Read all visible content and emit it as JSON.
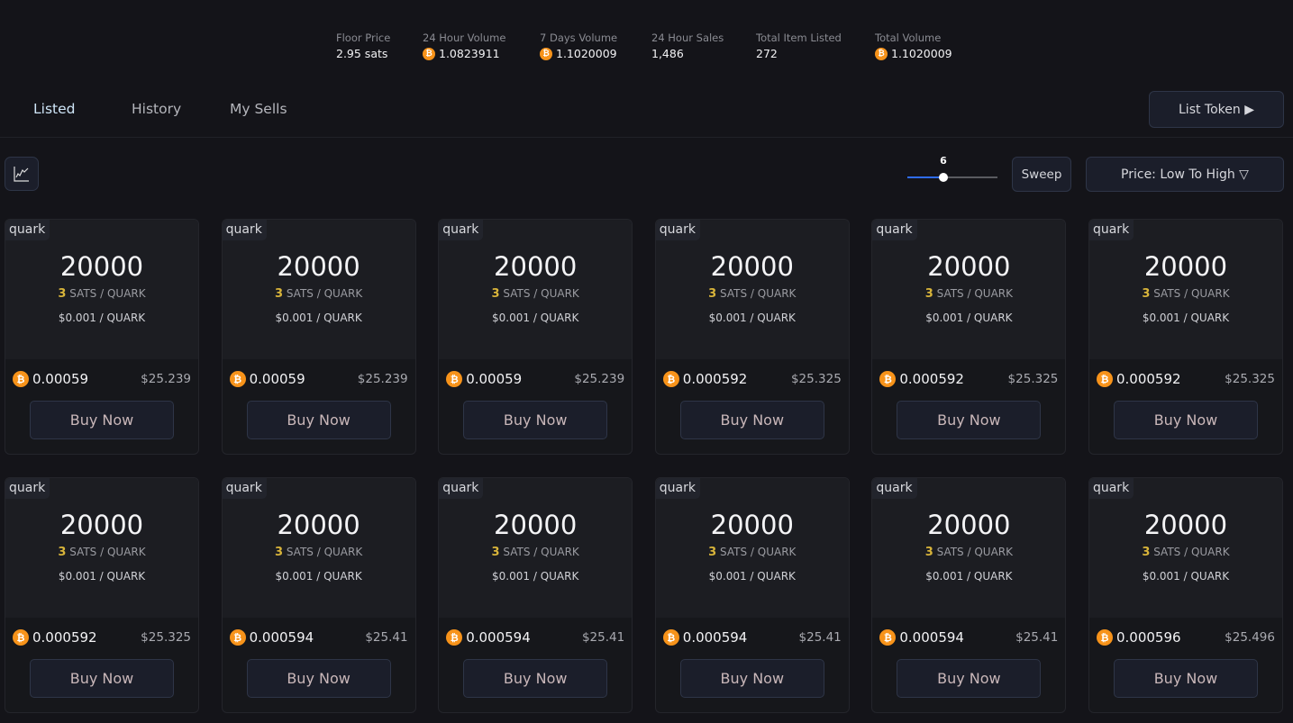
{
  "stats": [
    {
      "label": "Floor Price",
      "value": "2.95 sats",
      "btc": false
    },
    {
      "label": "24 Hour Volume",
      "value": "1.0823911",
      "btc": true
    },
    {
      "label": "7 Days Volume",
      "value": "1.1020009",
      "btc": true
    },
    {
      "label": "24 Hour Sales",
      "value": "1,486",
      "btc": false
    },
    {
      "label": "Total Item Listed",
      "value": "272",
      "btc": false
    },
    {
      "label": "Total Volume",
      "value": "1.1020009",
      "btc": true
    }
  ],
  "tabs": [
    {
      "label": "Listed",
      "active": true
    },
    {
      "label": "History",
      "active": false
    },
    {
      "label": "My Sells",
      "active": false
    }
  ],
  "toolbar": {
    "list_token": "List Token ▶",
    "sweep": "Sweep",
    "sort": "Price: Low To High ▽",
    "sweep_count": "6",
    "sweep_fraction": 0.4,
    "chart_icon": "line-chart-icon"
  },
  "colors": {
    "accent": "#2f6cf0",
    "bitcoin": "#f7931a",
    "sats_highlight": "#d8b43a"
  },
  "cards": [
    {
      "ticker": "quark",
      "amount": "20000",
      "sats": "3",
      "sats_unit": "SATS / QUARK",
      "usd_unit": "$0.001 / QUARK",
      "btc_price": "0.00059",
      "usd_price": "$25.239",
      "buy": "Buy Now"
    },
    {
      "ticker": "quark",
      "amount": "20000",
      "sats": "3",
      "sats_unit": "SATS / QUARK",
      "usd_unit": "$0.001 / QUARK",
      "btc_price": "0.00059",
      "usd_price": "$25.239",
      "buy": "Buy Now"
    },
    {
      "ticker": "quark",
      "amount": "20000",
      "sats": "3",
      "sats_unit": "SATS / QUARK",
      "usd_unit": "$0.001 / QUARK",
      "btc_price": "0.00059",
      "usd_price": "$25.239",
      "buy": "Buy Now"
    },
    {
      "ticker": "quark",
      "amount": "20000",
      "sats": "3",
      "sats_unit": "SATS / QUARK",
      "usd_unit": "$0.001 / QUARK",
      "btc_price": "0.000592",
      "usd_price": "$25.325",
      "buy": "Buy Now"
    },
    {
      "ticker": "quark",
      "amount": "20000",
      "sats": "3",
      "sats_unit": "SATS / QUARK",
      "usd_unit": "$0.001 / QUARK",
      "btc_price": "0.000592",
      "usd_price": "$25.325",
      "buy": "Buy Now"
    },
    {
      "ticker": "quark",
      "amount": "20000",
      "sats": "3",
      "sats_unit": "SATS / QUARK",
      "usd_unit": "$0.001 / QUARK",
      "btc_price": "0.000592",
      "usd_price": "$25.325",
      "buy": "Buy Now"
    },
    {
      "ticker": "quark",
      "amount": "20000",
      "sats": "3",
      "sats_unit": "SATS / QUARK",
      "usd_unit": "$0.001 / QUARK",
      "btc_price": "0.000592",
      "usd_price": "$25.325",
      "buy": "Buy Now"
    },
    {
      "ticker": "quark",
      "amount": "20000",
      "sats": "3",
      "sats_unit": "SATS / QUARK",
      "usd_unit": "$0.001 / QUARK",
      "btc_price": "0.000594",
      "usd_price": "$25.41",
      "buy": "Buy Now"
    },
    {
      "ticker": "quark",
      "amount": "20000",
      "sats": "3",
      "sats_unit": "SATS / QUARK",
      "usd_unit": "$0.001 / QUARK",
      "btc_price": "0.000594",
      "usd_price": "$25.41",
      "buy": "Buy Now"
    },
    {
      "ticker": "quark",
      "amount": "20000",
      "sats": "3",
      "sats_unit": "SATS / QUARK",
      "usd_unit": "$0.001 / QUARK",
      "btc_price": "0.000594",
      "usd_price": "$25.41",
      "buy": "Buy Now"
    },
    {
      "ticker": "quark",
      "amount": "20000",
      "sats": "3",
      "sats_unit": "SATS / QUARK",
      "usd_unit": "$0.001 / QUARK",
      "btc_price": "0.000594",
      "usd_price": "$25.41",
      "buy": "Buy Now"
    },
    {
      "ticker": "quark",
      "amount": "20000",
      "sats": "3",
      "sats_unit": "SATS / QUARK",
      "usd_unit": "$0.001 / QUARK",
      "btc_price": "0.000596",
      "usd_price": "$25.496",
      "buy": "Buy Now"
    }
  ]
}
